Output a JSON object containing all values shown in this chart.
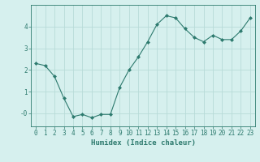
{
  "x": [
    0,
    1,
    2,
    3,
    4,
    5,
    6,
    7,
    8,
    9,
    10,
    11,
    12,
    13,
    14,
    15,
    16,
    17,
    18,
    19,
    20,
    21,
    22,
    23
  ],
  "y": [
    2.3,
    2.2,
    1.7,
    0.7,
    -0.15,
    -0.05,
    -0.2,
    -0.05,
    -0.05,
    1.2,
    2.0,
    2.6,
    3.3,
    4.1,
    4.5,
    4.4,
    3.9,
    3.5,
    3.3,
    3.6,
    3.4,
    3.4,
    3.8,
    4.4
  ],
  "line_color": "#2d7a6e",
  "marker": "D",
  "marker_size": 2.0,
  "bg_color": "#d6f0ee",
  "grid_color": "#b8dbd8",
  "xlabel": "Humidex (Indice chaleur)",
  "xlim": [
    -0.5,
    23.5
  ],
  "ylim": [
    -0.6,
    5.0
  ],
  "yticks": [
    0,
    1,
    2,
    3,
    4
  ],
  "ytick_labels": [
    "-0",
    "1",
    "2",
    "3",
    "4"
  ],
  "xticks": [
    0,
    1,
    2,
    3,
    4,
    5,
    6,
    7,
    8,
    9,
    10,
    11,
    12,
    13,
    14,
    15,
    16,
    17,
    18,
    19,
    20,
    21,
    22,
    23
  ],
  "label_fontsize": 6.5,
  "tick_fontsize": 5.5
}
